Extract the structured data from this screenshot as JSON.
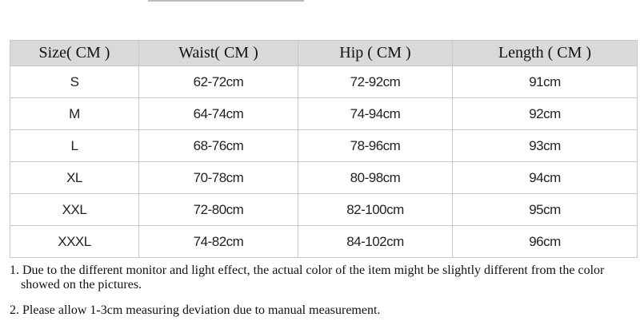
{
  "table": {
    "headers": [
      "Size( CM )",
      "Waist( CM )",
      "Hip ( CM )",
      "Length ( CM )"
    ],
    "rows": [
      [
        "S",
        "62-72cm",
        "72-92cm",
        "91cm"
      ],
      [
        "M",
        "64-74cm",
        "74-94cm",
        "92cm"
      ],
      [
        "L",
        "68-76cm",
        "78-96cm",
        "93cm"
      ],
      [
        "XL",
        "70-78cm",
        "80-98cm",
        "94cm"
      ],
      [
        "XXL",
        "72-80cm",
        "82-100cm",
        "95cm"
      ],
      [
        "XXXL",
        "74-82cm",
        "84-102cm",
        "96cm"
      ]
    ]
  },
  "notes": [
    "1. Due to the different monitor and light effect, the actual color of the item might be slightly different from the color showed on the pictures.",
    "2. Please allow 1-3cm measuring deviation due to manual measurement."
  ]
}
